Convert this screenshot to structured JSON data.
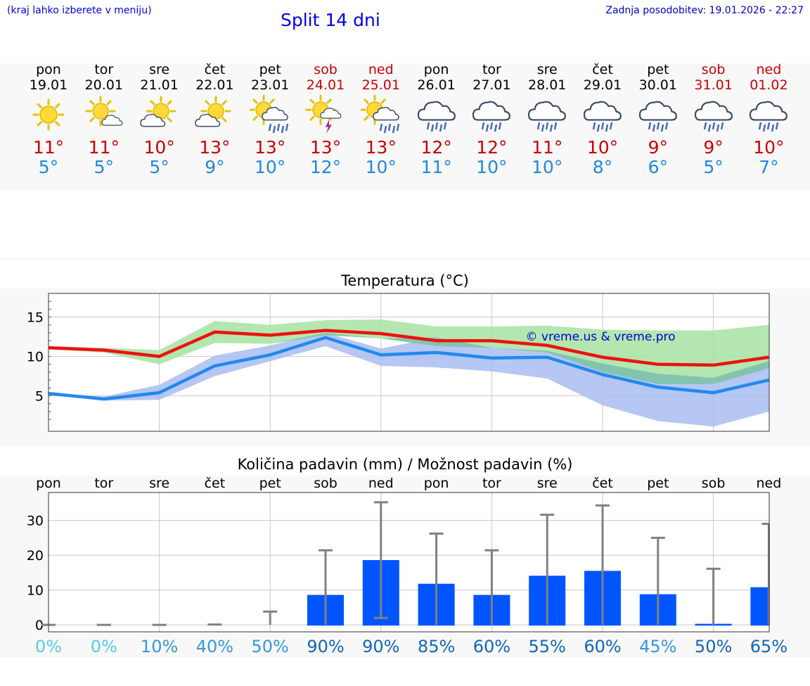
{
  "header": {
    "hint": "(kraj lahko izberete v meniju)",
    "title": "Split 14 dni",
    "updated": "Zadnja posodobitev: 19.01.2026 - 22:27"
  },
  "days": [
    {
      "name": "pon",
      "date": "19.01",
      "weekend": false,
      "icon": "sunny-icon",
      "max": "11°",
      "min": "5°"
    },
    {
      "name": "tor",
      "date": "20.01",
      "weekend": false,
      "icon": "sun-cloud-icon",
      "max": "11°",
      "min": "5°"
    },
    {
      "name": "sre",
      "date": "21.01",
      "weekend": false,
      "icon": "partly-cloudy-icon",
      "max": "10°",
      "min": "5°"
    },
    {
      "name": "čet",
      "date": "22.01",
      "weekend": false,
      "icon": "partly-cloudy-icon",
      "max": "13°",
      "min": "9°"
    },
    {
      "name": "pet",
      "date": "23.01",
      "weekend": false,
      "icon": "sun-rain-icon",
      "max": "13°",
      "min": "10°"
    },
    {
      "name": "sob",
      "date": "24.01",
      "weekend": true,
      "icon": "sun-thunder-icon",
      "max": "13°",
      "min": "12°"
    },
    {
      "name": "ned",
      "date": "25.01",
      "weekend": true,
      "icon": "sun-rain-icon",
      "max": "13°",
      "min": "10°"
    },
    {
      "name": "pon",
      "date": "26.01",
      "weekend": false,
      "icon": "rain-icon",
      "max": "12°",
      "min": "11°"
    },
    {
      "name": "tor",
      "date": "27.01",
      "weekend": false,
      "icon": "rain-icon",
      "max": "12°",
      "min": "10°"
    },
    {
      "name": "sre",
      "date": "28.01",
      "weekend": false,
      "icon": "rain-icon",
      "max": "11°",
      "min": "10°"
    },
    {
      "name": "čet",
      "date": "29.01",
      "weekend": false,
      "icon": "rain-icon",
      "max": "10°",
      "min": "8°"
    },
    {
      "name": "pet",
      "date": "30.01",
      "weekend": false,
      "icon": "rain-icon",
      "max": "9°",
      "min": "6°"
    },
    {
      "name": "sob",
      "date": "31.01",
      "weekend": true,
      "icon": "rain-icon",
      "max": "9°",
      "min": "5°"
    },
    {
      "name": "ned",
      "date": "01.02",
      "weekend": true,
      "icon": "rain-icon",
      "max": "10°",
      "min": "7°"
    }
  ],
  "colors": {
    "max_line": "#ee1111",
    "min_line": "#2288ee",
    "max_band": "#a6e3a1",
    "min_band": "#a8bdf0",
    "overlap_band": "#7fc4a8",
    "bar": "#0055ff",
    "whisker": "#808080",
    "watermark": "#0000cc"
  },
  "chart_data": [
    {
      "type": "line",
      "title": "Temperatura (°C)",
      "xlabel": "",
      "ylabel": "",
      "ylim": [
        0.5,
        18
      ],
      "yticks": [
        5,
        10,
        15
      ],
      "grid": true,
      "watermark": "© vreme.us & vreme.pro",
      "categories": [
        "19.01",
        "20.01",
        "21.01",
        "22.01",
        "23.01",
        "24.01",
        "25.01",
        "26.01",
        "27.01",
        "28.01",
        "29.01",
        "30.01",
        "31.01",
        "01.02"
      ],
      "series": [
        {
          "name": "max",
          "values": [
            11.1,
            10.8,
            10.0,
            13.1,
            12.7,
            13.3,
            12.9,
            12.0,
            12.0,
            11.4,
            9.9,
            9.0,
            8.9,
            9.9
          ],
          "band_low": [
            10.9,
            10.5,
            9.0,
            11.7,
            11.6,
            12.7,
            12.3,
            11.3,
            11.1,
            10.5,
            8.0,
            6.5,
            6.5,
            8.5
          ],
          "band_high": [
            11.3,
            11.1,
            10.8,
            14.5,
            14.0,
            14.6,
            14.7,
            13.8,
            13.8,
            13.9,
            13.4,
            13.3,
            13.3,
            14.0
          ]
        },
        {
          "name": "min",
          "values": [
            5.3,
            4.6,
            5.4,
            8.8,
            10.2,
            12.4,
            10.2,
            10.5,
            9.8,
            9.9,
            7.7,
            6.1,
            5.4,
            7.0
          ],
          "band_low": [
            5.2,
            4.4,
            4.5,
            7.5,
            9.4,
            11.3,
            8.8,
            8.6,
            8.1,
            7.2,
            3.8,
            1.8,
            1.1,
            3.0
          ],
          "band_high": [
            5.4,
            4.9,
            6.4,
            10.1,
            11.4,
            13.0,
            11.0,
            12.4,
            11.1,
            10.7,
            9.1,
            7.8,
            7.3,
            9.4
          ]
        }
      ]
    },
    {
      "type": "bar",
      "title": "Količina padavin (mm) / Možnost padavin (%)",
      "xlabel": "",
      "ylabel": "",
      "ylim": [
        -2,
        38
      ],
      "yticks": [
        0,
        10,
        20,
        30
      ],
      "grid": true,
      "categories": [
        "pon",
        "tor",
        "sre",
        "čet",
        "pet",
        "sob",
        "ned",
        "pon",
        "tor",
        "sre",
        "čet",
        "pet",
        "sob",
        "ned"
      ],
      "values": [
        0,
        0,
        0,
        0,
        0,
        8.6,
        18.6,
        11.8,
        8.6,
        14.1,
        15.5,
        8.8,
        0.3,
        10.8
      ],
      "err_low": [
        0,
        0,
        0,
        0,
        0,
        0,
        2.0,
        0,
        0,
        0,
        0,
        0,
        0,
        0
      ],
      "err_high": [
        0,
        0,
        0,
        0.1,
        3.8,
        21.4,
        35.2,
        26.2,
        21.4,
        31.6,
        34.3,
        25.0,
        16.1,
        29.0
      ],
      "probability": [
        "0%",
        "0%",
        "10%",
        "40%",
        "50%",
        "90%",
        "90%",
        "85%",
        "60%",
        "55%",
        "60%",
        "45%",
        "50%",
        "65%"
      ],
      "probability_colors": [
        "#55ccee",
        "#55ccee",
        "#3399dd",
        "#3399dd",
        "#3399dd",
        "#1166bb",
        "#1166bb",
        "#1166bb",
        "#1166bb",
        "#1166bb",
        "#1166bb",
        "#3399dd",
        "#1166bb",
        "#1166bb"
      ]
    }
  ]
}
